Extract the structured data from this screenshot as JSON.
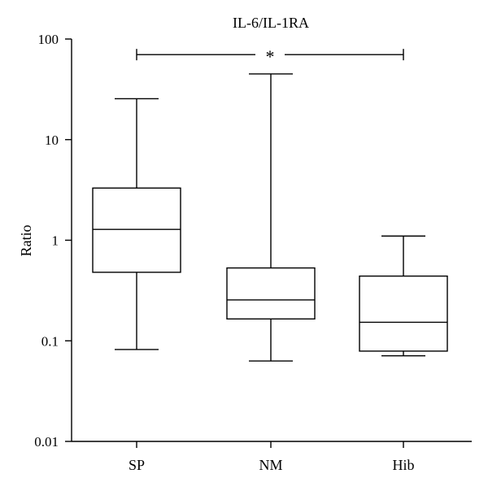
{
  "chart_data": {
    "type": "box",
    "title": "IL-6/IL-1RA",
    "xlabel": "",
    "ylabel": "Ratio",
    "yscale": "log",
    "ylim": [
      0.01,
      100
    ],
    "yticks": [
      0.01,
      0.1,
      1,
      10,
      100
    ],
    "ytick_labels": [
      "0.01",
      "0.1",
      "1",
      "10",
      "100"
    ],
    "categories": [
      "SP",
      "NM",
      "Hib"
    ],
    "boxes": [
      {
        "category": "SP",
        "min": 0.082,
        "q1": 0.48,
        "median": 1.28,
        "q3": 3.3,
        "max": 25.5
      },
      {
        "category": "NM",
        "min": 0.063,
        "q1": 0.165,
        "median": 0.255,
        "q3": 0.53,
        "max": 45.0
      },
      {
        "category": "Hib",
        "min": 0.071,
        "q1": 0.079,
        "median": 0.153,
        "q3": 0.44,
        "max": 1.1
      }
    ],
    "significance": {
      "from": "SP",
      "to": "Hib",
      "label": "*",
      "y": 70
    },
    "grid": false,
    "legend": "none"
  }
}
